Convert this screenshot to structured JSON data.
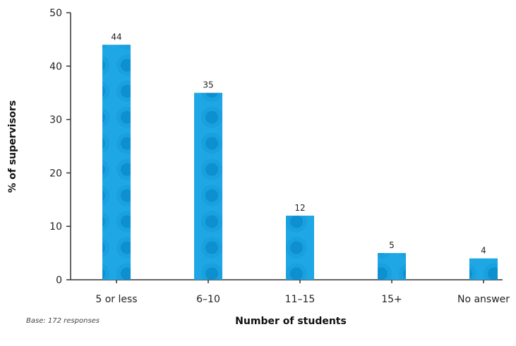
{
  "chart_data": {
    "type": "bar",
    "categories": [
      "5 or less",
      "6–10",
      "11–15",
      "15+",
      "No answer"
    ],
    "values": [
      44,
      35,
      12,
      5,
      4
    ],
    "data_labels": [
      "44",
      "35",
      "12",
      "5",
      "4"
    ],
    "xlabel": "Number of students",
    "ylabel": "% of supervisors",
    "ylim": [
      0,
      50
    ],
    "yticks": [
      0,
      10,
      20,
      30,
      40,
      50
    ],
    "grid": false,
    "note": "Base: 172 responses",
    "colors": {
      "bar": "#1ea7e4",
      "bar_pattern": "#0d8fd0",
      "axis": "#333333"
    }
  }
}
